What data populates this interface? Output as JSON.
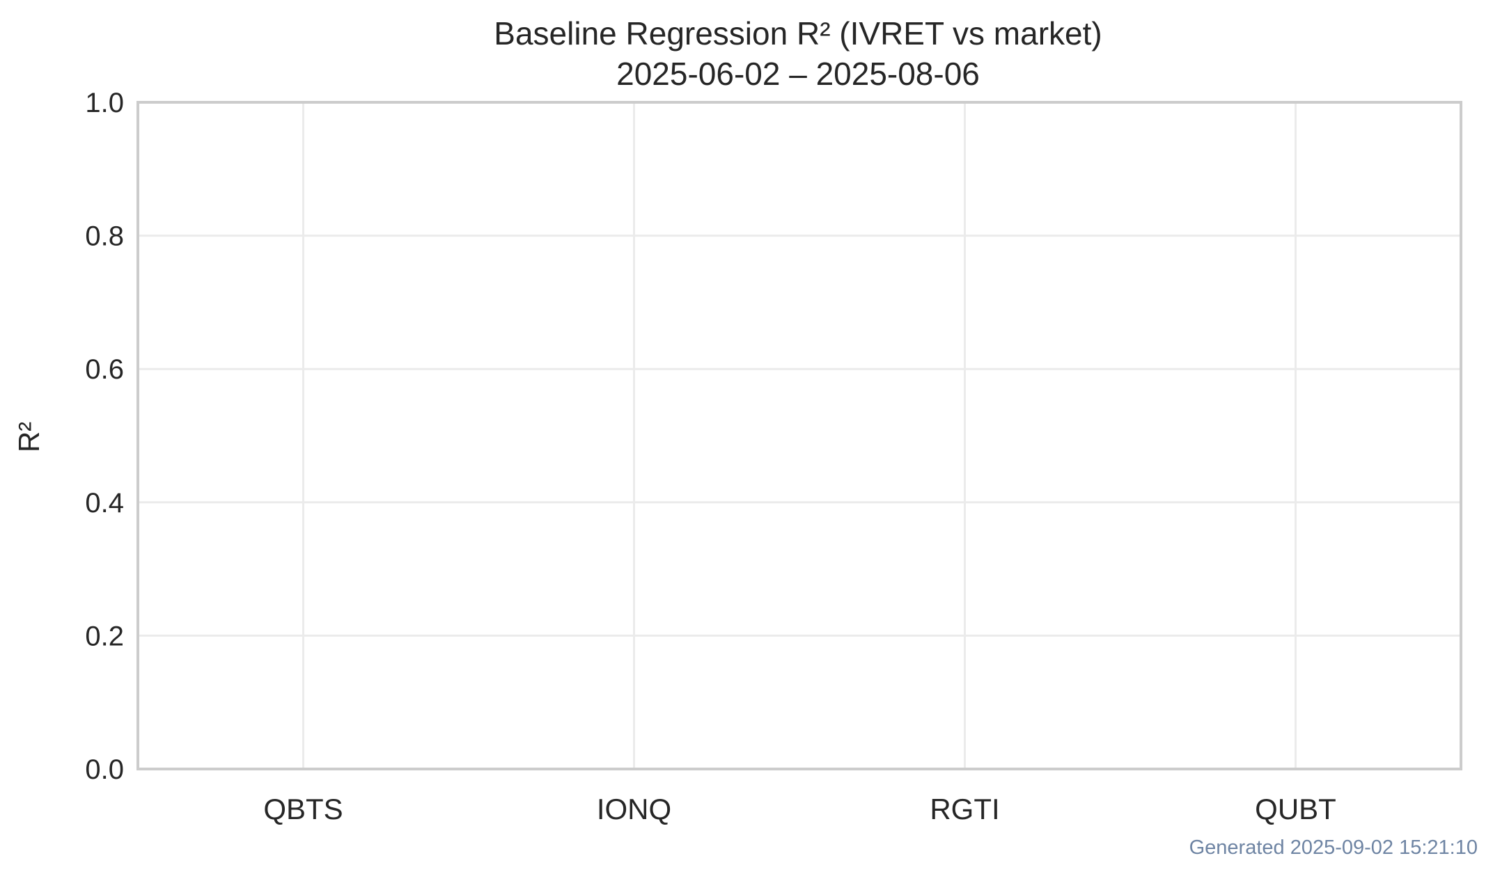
{
  "chart_data": {
    "type": "bar",
    "title": "Baseline Regression R² (IVRET vs market)",
    "subtitle": "2025-06-02 – 2025-08-06",
    "ylabel": "R²",
    "xlabel": "",
    "categories": [
      "QBTS",
      "IONQ",
      "RGTI",
      "QUBT"
    ],
    "values": [
      0,
      0,
      0,
      0
    ],
    "ylim": [
      0,
      1.0
    ],
    "yticks": [
      0.0,
      0.2,
      0.4,
      0.6,
      0.8,
      1.0
    ],
    "ytick_labels": [
      "0.0",
      "0.2",
      "0.4",
      "0.6",
      "0.8",
      "1.0"
    ],
    "grid": true,
    "legend": "none",
    "colors": {
      "grid": "#ebebeb",
      "axis": "#cccccc",
      "text": "#262626",
      "footer": "#6e84a3",
      "bar": "#4c72b0"
    }
  },
  "footer": {
    "generated_label": "Generated 2025-09-02 15:21:10"
  }
}
